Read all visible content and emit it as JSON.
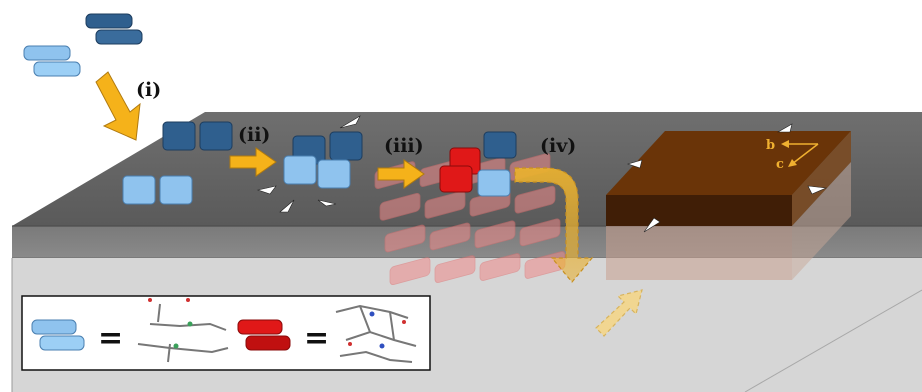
{
  "steps": {
    "i": "(i)",
    "ii": "(ii)",
    "iii": "(iii)",
    "iv": "(iv)"
  },
  "axes": {
    "b": "b",
    "c": "c"
  },
  "legend": {
    "equals_1": "=",
    "equals_2": "="
  },
  "colors": {
    "surface_top": "#6e6e6e",
    "surface_front": "#c9c9c9",
    "blue_dimer": "#8fc3ee",
    "dark_blue_dimer": "#2f5f8e",
    "red_dimer": "#e01818",
    "crystal": "#6a3408",
    "arrow": "#f5b21a",
    "bulk_crystal": "#ee8a8a"
  }
}
